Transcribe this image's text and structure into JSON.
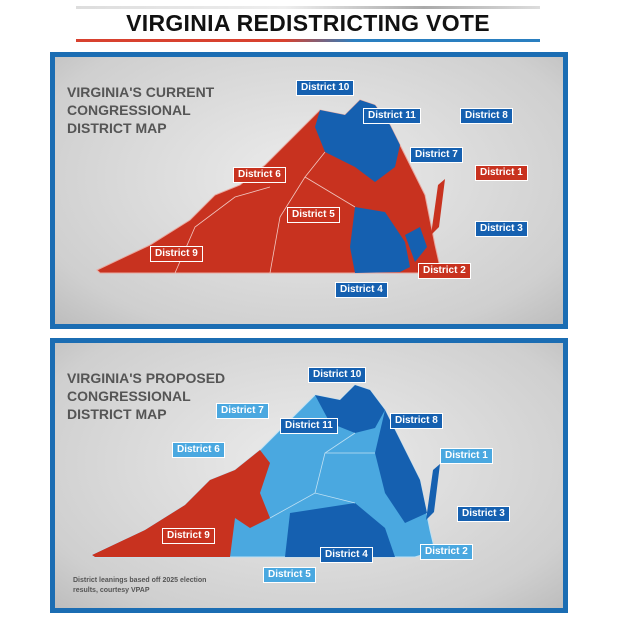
{
  "title": "VIRGINIA REDISTRICTING VOTE",
  "colors": {
    "republican": "#c8321f",
    "democrat_strong": "#1560b0",
    "democrat_lean": "#4aa8e0",
    "frame": "#1b6db3"
  },
  "current": {
    "title": "VIRGINIA'S CURRENT\nCONGRESSIONAL\nDISTRICT MAP",
    "districts": [
      {
        "label": "District 10",
        "party": "democrat_strong"
      },
      {
        "label": "District 11",
        "party": "democrat_strong"
      },
      {
        "label": "District 8",
        "party": "democrat_strong"
      },
      {
        "label": "District 7",
        "party": "democrat_strong"
      },
      {
        "label": "District 1",
        "party": "republican"
      },
      {
        "label": "District 3",
        "party": "democrat_strong"
      },
      {
        "label": "District 2",
        "party": "republican"
      },
      {
        "label": "District 4",
        "party": "democrat_strong"
      },
      {
        "label": "District 5",
        "party": "republican"
      },
      {
        "label": "District 6",
        "party": "republican"
      },
      {
        "label": "District 9",
        "party": "republican"
      }
    ]
  },
  "proposed": {
    "title": "VIRGINIA'S PROPOSED\nCONGRESSIONAL\nDISTRICT MAP",
    "note": "District leanings based off 2025 election results, courtesy VPAP",
    "districts": [
      {
        "label": "District 10",
        "party": "democrat_strong"
      },
      {
        "label": "District 7",
        "party": "democrat_lean"
      },
      {
        "label": "District 11",
        "party": "democrat_strong"
      },
      {
        "label": "District 8",
        "party": "democrat_strong"
      },
      {
        "label": "District 6",
        "party": "democrat_lean"
      },
      {
        "label": "District 1",
        "party": "democrat_lean"
      },
      {
        "label": "District 3",
        "party": "democrat_strong"
      },
      {
        "label": "District 2",
        "party": "democrat_lean"
      },
      {
        "label": "District 4",
        "party": "democrat_strong"
      },
      {
        "label": "District 5",
        "party": "democrat_lean"
      },
      {
        "label": "District 9",
        "party": "republican"
      }
    ]
  }
}
